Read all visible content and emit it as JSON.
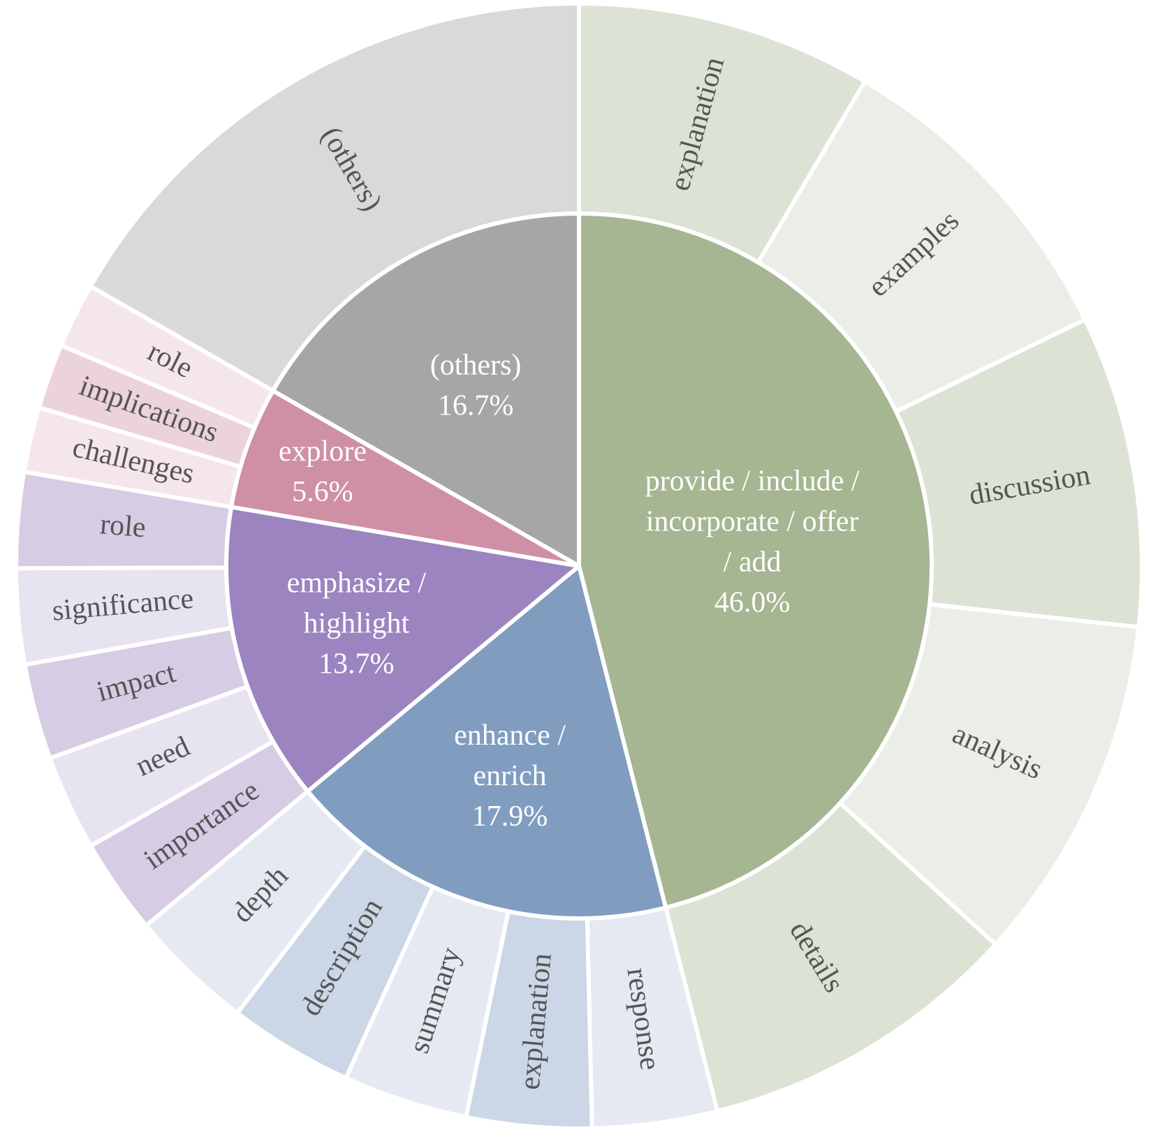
{
  "chart_data": {
    "type": "sunburst",
    "inner": [
      {
        "label": "provide / include / incorporate / offer / add",
        "label_lines": [
          "provide / include /",
          "incorporate / offer",
          "/ add"
        ],
        "value": 46.0,
        "value_text": "46.0%",
        "color": "#a6b592"
      },
      {
        "label": "enhance / enrich",
        "label_lines": [
          "enhance /",
          "enrich"
        ],
        "value": 17.9,
        "value_text": "17.9%",
        "color": "#809dc0"
      },
      {
        "label": "emphasize / highlight",
        "label_lines": [
          "emphasize /",
          "highlight"
        ],
        "value": 13.7,
        "value_text": "13.7%",
        "color": "#9b84c0"
      },
      {
        "label": "explore",
        "label_lines": [
          "explore"
        ],
        "value": 5.6,
        "value_text": "5.6%",
        "color": "#cf8fa5"
      },
      {
        "label": "(others)",
        "label_lines": [
          "(others)"
        ],
        "value": 16.7,
        "value_text": "16.7%",
        "color": "#a6a6a6"
      }
    ],
    "outer": [
      {
        "parent": "provide / include / incorporate / offer / add",
        "children": [
          {
            "label": "explanation",
            "value": 7.2,
            "color": "#dce2d4"
          },
          {
            "label": "examples",
            "value": 7.9,
            "color": "#ebeee6"
          },
          {
            "label": "discussion",
            "value": 7.6,
            "color": "#dce2d4"
          },
          {
            "label": "analysis",
            "value": 8.5,
            "color": "#ebeee6"
          },
          {
            "label": "details",
            "value": 7.9,
            "color": "#dce2d4"
          }
        ]
      },
      {
        "parent": "enhance / enrich",
        "children": [
          {
            "label": "response",
            "value": 2.7,
            "color": "#e4e9f2"
          },
          {
            "label": "explanation",
            "value": 2.7,
            "color": "#cbd6e6"
          },
          {
            "label": "summary",
            "value": 2.7,
            "color": "#e4e9f2"
          },
          {
            "label": "description",
            "value": 2.7,
            "color": "#cbd6e6"
          },
          {
            "label": "depth",
            "value": 2.7,
            "color": "#e4e9f2"
          }
        ]
      },
      {
        "parent": "emphasize / highlight",
        "children": [
          {
            "label": "importance",
            "value": 2.6,
            "color": "#d6cce4"
          },
          {
            "label": "need",
            "value": 2.6,
            "color": "#e8e3f0"
          },
          {
            "label": "impact",
            "value": 2.6,
            "color": "#d6cce4"
          },
          {
            "label": "significance",
            "value": 2.6,
            "color": "#e8e3f0"
          },
          {
            "label": "role",
            "value": 2.6,
            "color": "#d6cce4"
          }
        ]
      },
      {
        "parent": "explore",
        "children": [
          {
            "label": "challenges",
            "value": 1.7,
            "color": "#f5e6ec"
          },
          {
            "label": "implications",
            "value": 1.7,
            "color": "#ecd2dc"
          },
          {
            "label": "role",
            "value": 1.7,
            "color": "#f5e6ec"
          }
        ]
      },
      {
        "parent": "(others)",
        "children": [
          {
            "label": "(others)",
            "value": 16.7,
            "color": "#d9d9d9"
          }
        ]
      }
    ]
  }
}
